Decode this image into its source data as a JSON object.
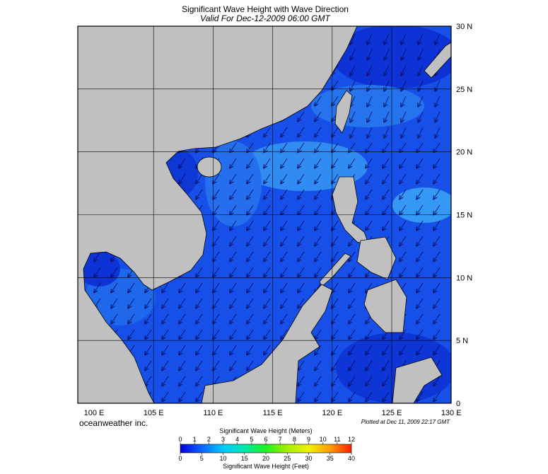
{
  "title": "Significant Wave Height with Wave Direction",
  "subtitle": "Valid For Dec-12-2009 06:00 GMT",
  "map": {
    "lat_labels": [
      "30 N",
      "25 N",
      "20 N",
      "15 N",
      "10 N",
      "5 N",
      "0"
    ],
    "lon_labels": [
      "100 E",
      "105 E",
      "110 E",
      "115 E",
      "120 E",
      "125 E",
      "130 E"
    ]
  },
  "brand": "oceanweather inc.",
  "plotted": "Plotted at Dec 11, 2009 22:17 GMT",
  "colorbar": {
    "title_top": "Significant Wave Height (Meters)",
    "meters_ticks": [
      0,
      1,
      2,
      3,
      4,
      5,
      6,
      7,
      8,
      9,
      10,
      11,
      12
    ],
    "feet_ticks": [
      0,
      5,
      10,
      15,
      20,
      25,
      30,
      35,
      40
    ],
    "title_bottom": "Significant Wave Height (Feet)"
  }
}
